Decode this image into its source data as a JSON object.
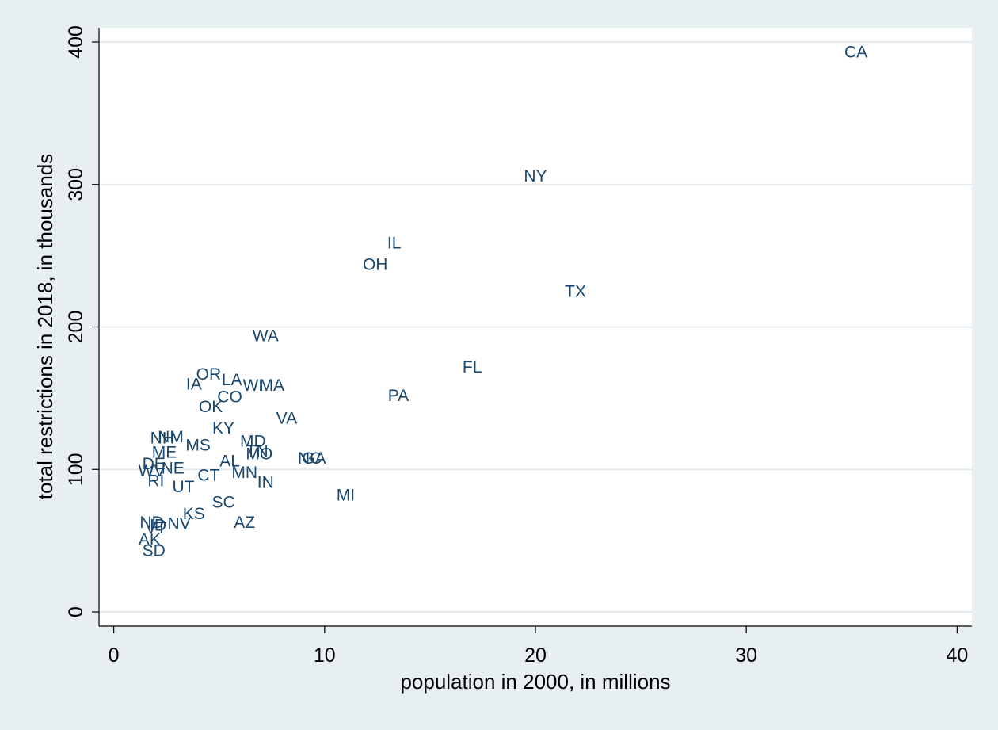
{
  "chart_data": {
    "type": "scatter",
    "title": "",
    "xlabel": "population in 2000, in millions",
    "ylabel": "total restrictions in 2018, in thousands",
    "xlim": [
      -0.7,
      40.7
    ],
    "ylim": [
      -10,
      410
    ],
    "xticks": [
      0,
      10,
      20,
      30,
      40
    ],
    "yticks": [
      0,
      100,
      200,
      300,
      400
    ],
    "xtick_labels": [
      "0",
      "10",
      "20",
      "30",
      "40"
    ],
    "ytick_labels": [
      "0",
      "100",
      "200",
      "300",
      "400"
    ],
    "grid": "horizontal",
    "legend": "none",
    "marker": "state abbreviation label",
    "colors": {
      "background": "#e8eff2",
      "plot_area": "#ffffff",
      "grid": "#e3ebef",
      "marker_text": "#1a476f",
      "axis": "#000000"
    },
    "points": [
      {
        "label": "CA",
        "x": 35.2,
        "y": 393
      },
      {
        "label": "NY",
        "x": 20.0,
        "y": 306
      },
      {
        "label": "IL",
        "x": 13.3,
        "y": 259
      },
      {
        "label": "OH",
        "x": 12.4,
        "y": 244
      },
      {
        "label": "TX",
        "x": 21.9,
        "y": 225
      },
      {
        "label": "WA",
        "x": 7.2,
        "y": 194
      },
      {
        "label": "FL",
        "x": 17.0,
        "y": 172
      },
      {
        "label": "PA",
        "x": 13.5,
        "y": 152
      },
      {
        "label": "OR",
        "x": 4.5,
        "y": 167
      },
      {
        "label": "LA",
        "x": 5.6,
        "y": 163
      },
      {
        "label": "IA",
        "x": 3.8,
        "y": 160
      },
      {
        "label": "WI",
        "x": 6.6,
        "y": 159
      },
      {
        "label": "MA",
        "x": 7.5,
        "y": 159
      },
      {
        "label": "CO",
        "x": 5.5,
        "y": 151
      },
      {
        "label": "OK",
        "x": 4.6,
        "y": 144
      },
      {
        "label": "VA",
        "x": 8.2,
        "y": 136
      },
      {
        "label": "KY",
        "x": 5.2,
        "y": 129
      },
      {
        "label": "NH",
        "x": 2.3,
        "y": 122
      },
      {
        "label": "NM",
        "x": 2.7,
        "y": 123
      },
      {
        "label": "MD",
        "x": 6.6,
        "y": 120
      },
      {
        "label": "MS",
        "x": 4.0,
        "y": 117
      },
      {
        "label": "ME",
        "x": 2.4,
        "y": 112
      },
      {
        "label": "TN",
        "x": 6.8,
        "y": 113
      },
      {
        "label": "MO",
        "x": 6.9,
        "y": 111
      },
      {
        "label": "NC",
        "x": 9.3,
        "y": 108
      },
      {
        "label": "GA",
        "x": 9.5,
        "y": 108
      },
      {
        "label": "AL",
        "x": 5.5,
        "y": 106
      },
      {
        "label": "DE",
        "x": 1.9,
        "y": 104
      },
      {
        "label": "WV",
        "x": 1.8,
        "y": 99
      },
      {
        "label": "NE",
        "x": 2.8,
        "y": 101
      },
      {
        "label": "CT",
        "x": 4.5,
        "y": 96
      },
      {
        "label": "MN",
        "x": 6.2,
        "y": 98
      },
      {
        "label": "IN",
        "x": 7.2,
        "y": 91
      },
      {
        "label": "RI",
        "x": 2.0,
        "y": 92
      },
      {
        "label": "UT",
        "x": 3.3,
        "y": 88
      },
      {
        "label": "MI",
        "x": 11.0,
        "y": 82
      },
      {
        "label": "SC",
        "x": 5.2,
        "y": 77
      },
      {
        "label": "KS",
        "x": 3.8,
        "y": 69
      },
      {
        "label": "AZ",
        "x": 6.2,
        "y": 63
      },
      {
        "label": "ND",
        "x": 1.8,
        "y": 63
      },
      {
        "label": "ID",
        "x": 2.1,
        "y": 61
      },
      {
        "label": "VT",
        "x": 2.0,
        "y": 59
      },
      {
        "label": "NV",
        "x": 3.1,
        "y": 62
      },
      {
        "label": "AK",
        "x": 1.7,
        "y": 51
      },
      {
        "label": "SD",
        "x": 1.9,
        "y": 43
      }
    ]
  }
}
